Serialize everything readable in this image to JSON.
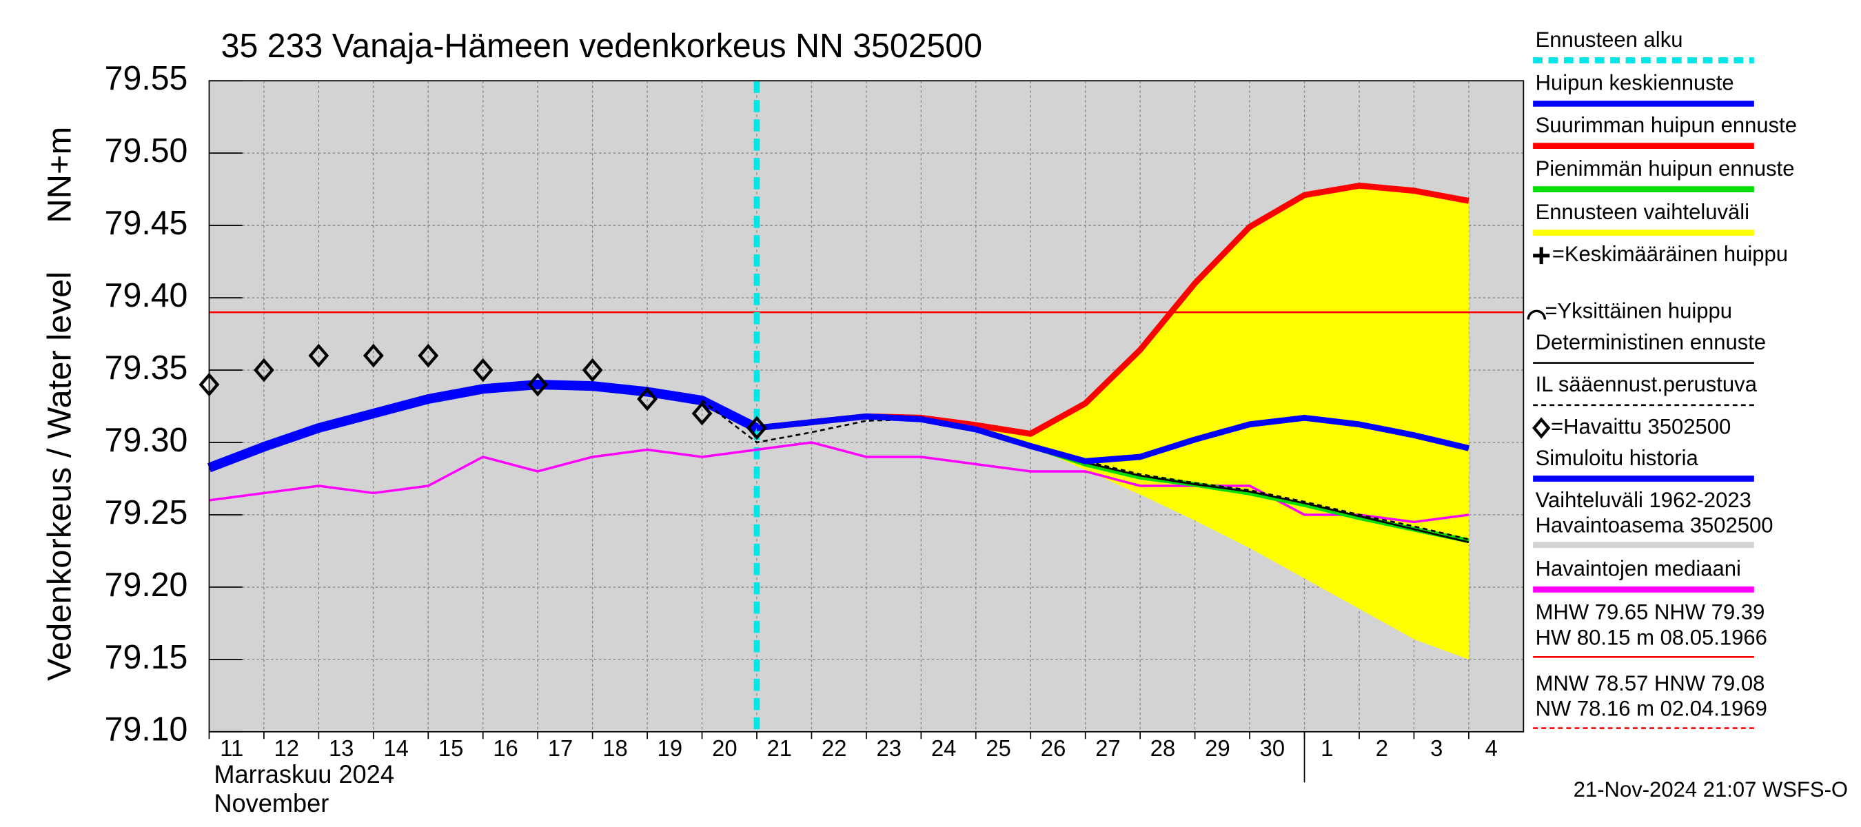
{
  "chart_data": {
    "type": "line",
    "title": "35 233 Vanaja-Hämeen vedenkorkeus NN 3502500",
    "y_label": "Vedenkorkeus / Water level",
    "y_unit": "NN+m",
    "categories": [
      "11",
      "12",
      "13",
      "14",
      "15",
      "16",
      "17",
      "18",
      "19",
      "20",
      "21",
      "22",
      "23",
      "24",
      "25",
      "26",
      "27",
      "28",
      "29",
      "30",
      "1",
      "2",
      "3",
      "4"
    ],
    "month_labels": [
      "Marraskuu 2024",
      "November"
    ],
    "ylim": [
      79.1,
      79.55
    ],
    "yticks": [
      {
        "value": 79.1,
        "label": "79.10"
      },
      79.15,
      {
        "value": 79.2,
        "label": "79.20"
      },
      79.25,
      {
        "value": 79.3,
        "label": "79.30"
      },
      79.35,
      {
        "value": 79.4,
        "label": "79.40"
      },
      79.45,
      {
        "value": 79.5,
        "label": "79.50"
      },
      79.55
    ],
    "grid": true,
    "forecast_start": "21",
    "reference_line": {
      "value": 79.39,
      "color": "#ff0000"
    },
    "range": {
      "color": "#ffff00",
      "upper": [
        null,
        null,
        null,
        null,
        null,
        null,
        null,
        null,
        null,
        null,
        79.31,
        79.314,
        79.318,
        79.317,
        79.312,
        79.306,
        79.327,
        79.364,
        79.41,
        79.449,
        79.471,
        79.4775,
        79.474,
        79.467
      ],
      "lower": [
        null,
        null,
        null,
        null,
        null,
        null,
        null,
        null,
        null,
        null,
        79.31,
        79.314,
        79.318,
        79.316,
        79.309,
        79.2975,
        79.281,
        79.264,
        79.246,
        79.227,
        79.206,
        79.185,
        79.164,
        79.15
      ]
    },
    "series": [
      {
        "color": "#ff00ff",
        "width": 2,
        "values": [
          79.26,
          79.265,
          79.27,
          79.265,
          79.27,
          79.29,
          79.28,
          79.29,
          79.295,
          79.29,
          79.295,
          79.3,
          79.29,
          79.29,
          79.285,
          79.28,
          79.28,
          79.27,
          79.27,
          79.27,
          79.25,
          79.25,
          79.245,
          79.25
        ]
      },
      {
        "color": "#0000ff",
        "width": 8,
        "values": [
          79.2825,
          79.297,
          79.31,
          79.32,
          79.33,
          79.337,
          79.34,
          79.339,
          79.335,
          79.329,
          79.31,
          null,
          null,
          null,
          null,
          null,
          null,
          null,
          null,
          null,
          null,
          null,
          null,
          null
        ]
      },
      {
        "color": "#ff0000",
        "width": 5,
        "values": [
          null,
          null,
          null,
          null,
          null,
          null,
          null,
          null,
          null,
          null,
          79.31,
          79.314,
          79.318,
          79.317,
          79.312,
          79.306,
          79.327,
          79.364,
          79.41,
          79.449,
          79.471,
          79.4775,
          79.474,
          79.467
        ]
      },
      {
        "color": "#00dd00",
        "width": 4,
        "values": [
          null,
          null,
          null,
          null,
          null,
          null,
          null,
          null,
          null,
          null,
          79.31,
          79.314,
          79.318,
          79.316,
          79.309,
          79.2975,
          79.285,
          79.276,
          79.271,
          79.265,
          79.257,
          79.248,
          79.24,
          79.232
        ]
      },
      {
        "color": "#000000",
        "width": 1.5,
        "values": [
          null,
          null,
          null,
          null,
          null,
          null,
          null,
          null,
          null,
          null,
          79.31,
          79.314,
          79.318,
          79.316,
          79.309,
          79.2975,
          79.286,
          79.277,
          79.271,
          79.266,
          79.258,
          79.249,
          79.24,
          79.231
        ]
      },
      {
        "color": "#000000",
        "width": 1.5,
        "dash": true,
        "values": [
          null,
          null,
          null,
          null,
          null,
          null,
          null,
          null,
          null,
          79.329,
          79.3,
          79.307,
          79.315,
          79.316,
          79.309,
          79.2975,
          79.287,
          79.278,
          79.272,
          79.267,
          79.259,
          79.25,
          79.242,
          79.233
        ]
      },
      {
        "color": "#0000ff",
        "width": 5,
        "values": [
          null,
          null,
          null,
          null,
          null,
          null,
          null,
          null,
          null,
          null,
          79.31,
          79.314,
          79.318,
          79.316,
          79.309,
          79.2975,
          79.287,
          79.29,
          79.302,
          79.3125,
          79.317,
          79.3125,
          79.305,
          79.296
        ]
      },
      {
        "color": "#000000",
        "marker": "diamond",
        "values": [
          79.34,
          79.35,
          79.36,
          79.36,
          79.36,
          79.35,
          79.34,
          79.35,
          79.33,
          79.32,
          79.31,
          null,
          null,
          null,
          null,
          null,
          null,
          null,
          null,
          null,
          null,
          null,
          null,
          null
        ]
      }
    ],
    "legend": [
      {
        "text": "Ennusteen alku",
        "color": "#00e5e5",
        "dash": true
      },
      {
        "text": "Huipun keskiennuste",
        "color": "#0000ff"
      },
      {
        "text": "Suurimman huipun ennuste",
        "color": "#ff0000"
      },
      {
        "text": "Pienimmän huipun ennuste",
        "color": "#00dd00"
      },
      {
        "text": "Ennusteen vaihteluväli",
        "color": "#ffff00"
      },
      {
        "text": "=Keskimääräinen huippu",
        "icon": "plus"
      },
      {
        "text": "=Yksittäinen huippu",
        "icon": "arc"
      },
      {
        "text": "Deterministinen ennuste",
        "color": "#000000",
        "thin": true
      },
      {
        "text": "IL sääennust.perustuva",
        "color": "#000000",
        "thin": true,
        "dash": true
      },
      {
        "text": "=Havaittu 3502500",
        "icon": "diamond"
      },
      {
        "text": "Simuloitu historia",
        "color": "#0000ff"
      },
      {
        "text": "Vaihteluväli 1962-2023",
        "text2": " Havaintoasema 3502500",
        "color": "#d3d3d3"
      },
      {
        "text": "Havaintojen mediaani",
        "color": "#ff00ff"
      },
      {
        "text": "MHW  79.65 NHW  79.39",
        "text2": "HW  80.15 m 08.05.1966",
        "color": "#ff0000",
        "thin": true
      },
      {
        "text": "MNW  78.57 HNW  79.08",
        "text2": "NW  78.16 m 02.04.1969",
        "color": "#ff0000",
        "thin": true,
        "dash": true
      }
    ],
    "footer": "21-Nov-2024 21:07 WSFS-O"
  }
}
